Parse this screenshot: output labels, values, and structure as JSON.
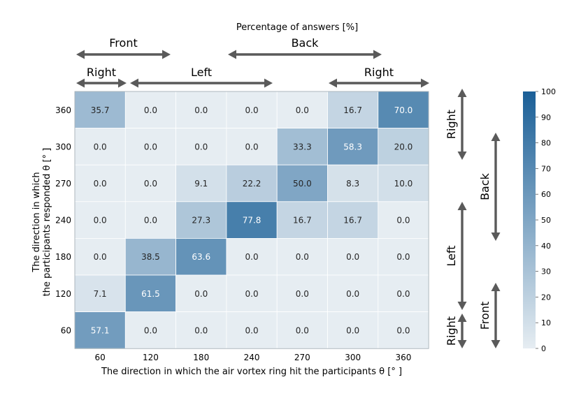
{
  "chart_data": {
    "type": "heatmap",
    "title": "Percentage of answers [%]",
    "xlabel": "The direction in which the air vortex ring hit the participants  θ [° ]",
    "ylabel_line1": "The direction in which",
    "ylabel_line2": "the participants responded  θ [° ]",
    "x_ticks": [
      "60",
      "120",
      "180",
      "240",
      "270",
      "300",
      "360"
    ],
    "y_ticks": [
      "360",
      "300",
      "270",
      "240",
      "180",
      "120",
      "60"
    ],
    "values": [
      [
        "35.7",
        "0.0",
        "0.0",
        "0.0",
        "0.0",
        "16.7",
        "70.0"
      ],
      [
        "0.0",
        "0.0",
        "0.0",
        "0.0",
        "33.3",
        "58.3",
        "20.0"
      ],
      [
        "0.0",
        "0.0",
        "9.1",
        "22.2",
        "50.0",
        "8.3",
        "10.0"
      ],
      [
        "0.0",
        "0.0",
        "27.3",
        "77.8",
        "16.7",
        "16.7",
        "0.0"
      ],
      [
        "0.0",
        "38.5",
        "63.6",
        "0.0",
        "0.0",
        "0.0",
        "0.0"
      ],
      [
        "7.1",
        "61.5",
        "0.0",
        "0.0",
        "0.0",
        "0.0",
        "0.0"
      ],
      [
        "57.1",
        "0.0",
        "0.0",
        "0.0",
        "0.0",
        "0.0",
        "0.0"
      ]
    ],
    "colorbar": {
      "min": 0,
      "max": 100,
      "ticks": [
        "0",
        "10",
        "20",
        "30",
        "40",
        "50",
        "60",
        "70",
        "80",
        "90",
        "100"
      ]
    },
    "colors": {
      "low": "#e6edf2",
      "high": "#1a5f97",
      "arrow": "#5a5a5a"
    },
    "top_annotations": {
      "row1": [
        {
          "label": "Front",
          "from": 60,
          "to": 180
        },
        {
          "label": "Back",
          "from": 240,
          "to": 300
        }
      ],
      "row2": [
        {
          "label": "Right",
          "from": 60,
          "to": 90
        },
        {
          "label": "Left",
          "from": 90,
          "to": 240
        },
        {
          "label": "Right",
          "from": 300,
          "to": 360
        }
      ]
    },
    "side_annotations": {
      "col1": [
        {
          "label": "Right",
          "from": 360,
          "to": 300
        },
        {
          "label": "Left",
          "from": 240,
          "to": 120
        },
        {
          "label": "Right",
          "from": 90,
          "to": 60
        }
      ],
      "col2": [
        {
          "label": "Back",
          "from": 300,
          "to": 240
        },
        {
          "label": "Front",
          "from": 90,
          "to": 60
        }
      ]
    }
  }
}
